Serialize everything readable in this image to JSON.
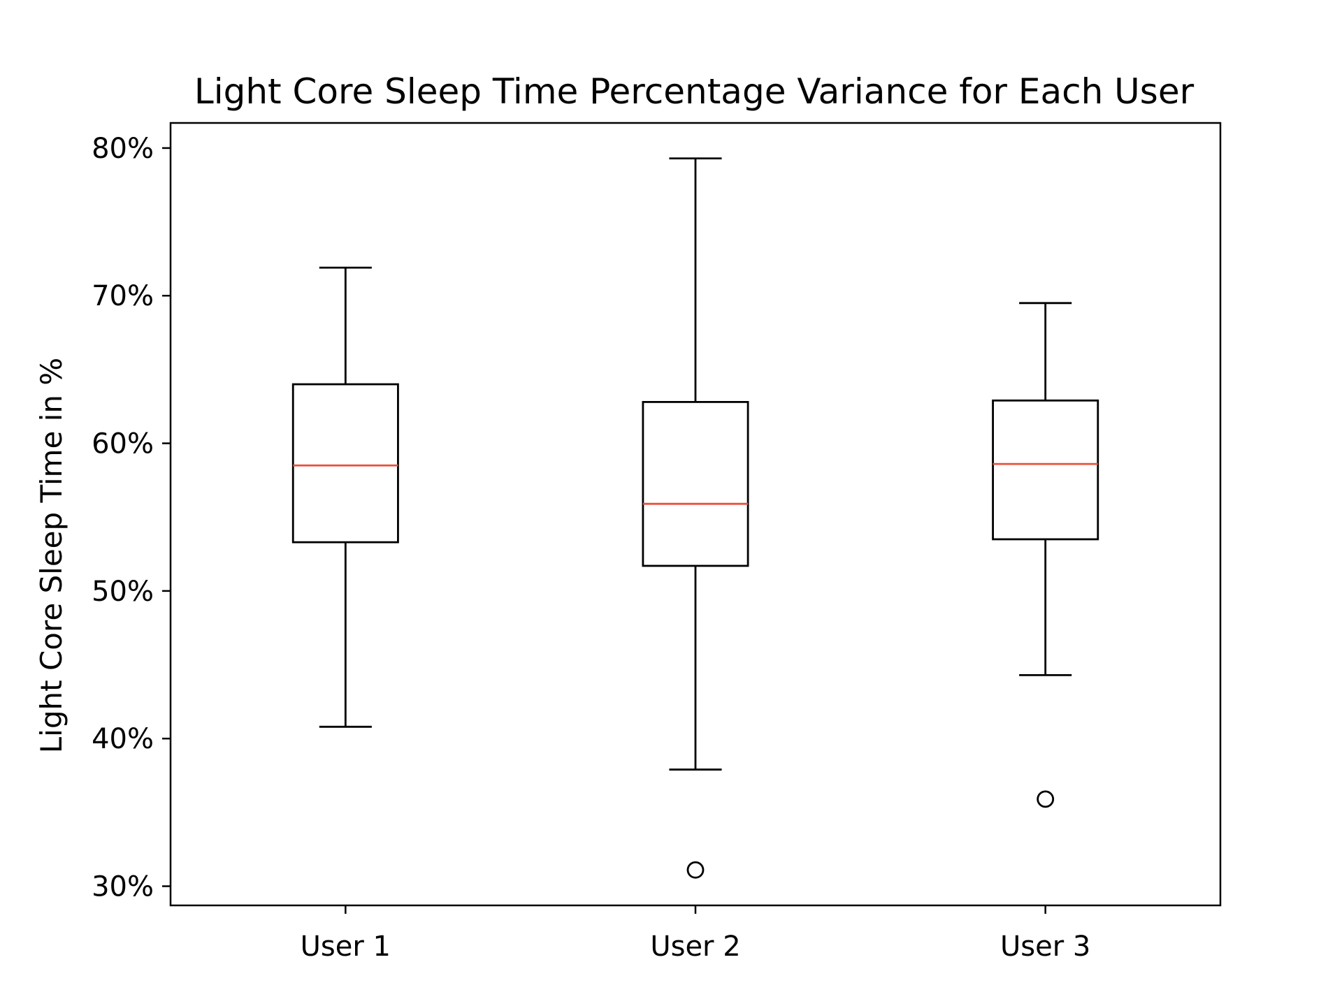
{
  "chart_data": {
    "type": "box",
    "title": "Light Core Sleep Time Percentage Variance for Each User",
    "xlabel": "",
    "ylabel": "Light Core Sleep Time in %",
    "ylim": [
      28.7,
      81.7
    ],
    "yticks": [
      30,
      40,
      50,
      60,
      70,
      80
    ],
    "ytick_labels": [
      "30%",
      "40%",
      "50%",
      "60%",
      "70%",
      "80%"
    ],
    "categories": [
      "User 1",
      "User 2",
      "User 3"
    ],
    "boxes": [
      {
        "category": "User 1",
        "whisker_low": 40.8,
        "q1": 53.3,
        "median": 58.5,
        "q3": 64.0,
        "whisker_high": 71.9,
        "outliers": []
      },
      {
        "category": "User 2",
        "whisker_low": 37.9,
        "q1": 51.7,
        "median": 55.9,
        "q3": 62.8,
        "whisker_high": 79.3,
        "outliers": [
          31.1
        ]
      },
      {
        "category": "User 3",
        "whisker_low": 44.3,
        "q1": 53.5,
        "median": 58.6,
        "q3": 62.9,
        "whisker_high": 69.5,
        "outliers": [
          35.9
        ]
      }
    ],
    "grid": false,
    "legend": "none",
    "colors": {
      "box": "#000000",
      "median": "#e8503a",
      "axes": "#000000"
    }
  }
}
